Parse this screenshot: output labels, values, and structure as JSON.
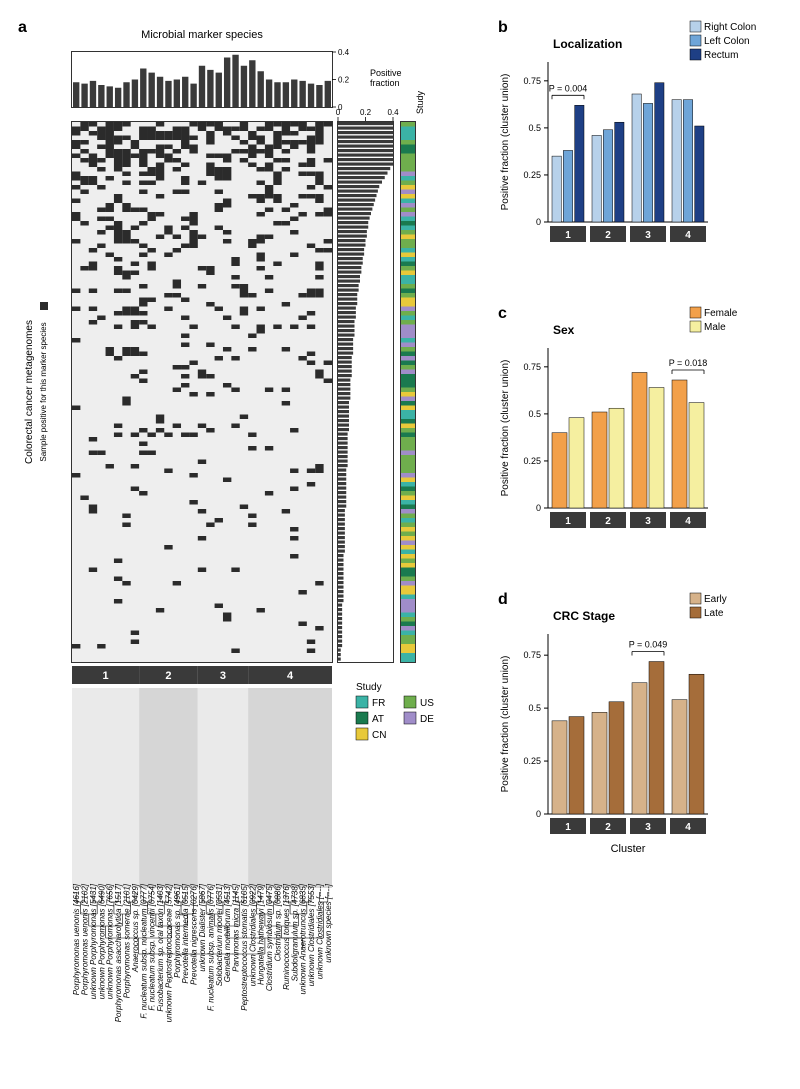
{
  "panelA": {
    "label": "a",
    "top_title": "Microbial marker species",
    "y_axis_label": "Colorectal cancer metagenomes",
    "legend_box_label": "Sample positive for this marker species",
    "top_bar": {
      "ylabel": "Positive\nfraction",
      "ylim": [
        0,
        0.4
      ],
      "yticks": [
        0,
        0.2,
        0.4
      ],
      "bar_color": "#3a3a3a",
      "values": [
        0.18,
        0.17,
        0.19,
        0.16,
        0.15,
        0.14,
        0.18,
        0.2,
        0.28,
        0.25,
        0.22,
        0.19,
        0.2,
        0.22,
        0.17,
        0.3,
        0.27,
        0.25,
        0.36,
        0.38,
        0.3,
        0.34,
        0.26,
        0.2,
        0.18,
        0.18,
        0.2,
        0.19,
        0.17,
        0.16,
        0.19
      ]
    },
    "right_bar": {
      "xlim": [
        0,
        0.4
      ],
      "xticks": [
        0,
        0.2,
        0.4
      ]
    },
    "study_label": "Study",
    "study_legend": {
      "title": "Study",
      "items": [
        {
          "code": "FR",
          "color": "#3bb3a6"
        },
        {
          "code": "AT",
          "color": "#1a7a4f"
        },
        {
          "code": "CN",
          "color": "#e8c93a"
        },
        {
          "code": "US",
          "color": "#6fae4d"
        },
        {
          "code": "DE",
          "color": "#a08dc9"
        }
      ]
    },
    "heatmap": {
      "fg": "#2b2b2b",
      "bg": "#eeeeee",
      "n_cols": 31,
      "n_rows": 120,
      "density_profile": [
        0.7,
        0.66,
        0.63,
        0.6,
        0.55,
        0.52,
        0.49,
        0.46,
        0.43,
        0.4,
        0.38,
        0.36,
        0.34,
        0.32,
        0.3,
        0.29,
        0.28,
        0.27,
        0.26,
        0.25,
        0.24,
        0.23,
        0.22,
        0.22,
        0.21,
        0.21,
        0.2,
        0.2,
        0.19,
        0.19,
        0.18,
        0.18,
        0.17,
        0.17,
        0.16,
        0.16,
        0.15,
        0.15,
        0.14,
        0.14,
        0.14,
        0.13,
        0.13,
        0.13,
        0.12,
        0.12,
        0.12,
        0.12,
        0.11,
        0.11,
        0.11,
        0.11,
        0.1,
        0.1,
        0.1,
        0.1,
        0.1,
        0.09,
        0.09,
        0.09,
        0.09,
        0.09,
        0.08,
        0.08,
        0.08,
        0.08,
        0.08,
        0.08,
        0.08,
        0.07,
        0.07,
        0.07,
        0.07,
        0.07,
        0.07,
        0.07,
        0.07,
        0.06,
        0.06,
        0.06,
        0.06,
        0.06,
        0.06,
        0.06,
        0.06,
        0.06,
        0.05,
        0.05,
        0.05,
        0.05,
        0.05,
        0.05,
        0.05,
        0.05,
        0.05,
        0.05,
        0.04,
        0.04,
        0.04,
        0.04,
        0.04,
        0.04,
        0.04,
        0.04,
        0.04,
        0.04,
        0.04,
        0.03,
        0.03,
        0.03,
        0.03,
        0.03,
        0.03,
        0.03,
        0.03,
        0.03,
        0.03,
        0.02,
        0.02,
        0.02
      ]
    },
    "clusters": [
      {
        "id": "1",
        "span": [
          0,
          7
        ],
        "bg": "#eaeaea"
      },
      {
        "id": "2",
        "span": [
          8,
          14
        ],
        "bg": "#d6d6d6"
      },
      {
        "id": "3",
        "span": [
          15,
          20
        ],
        "bg": "#eaeaea"
      },
      {
        "id": "4",
        "span": [
          21,
          30
        ],
        "bg": "#d6d6d6"
      }
    ],
    "species": [
      "Porphyromonas uenonis [4616]",
      "Porphyromonas uenonis [2102]",
      "unknown Porphyromonas [5431]",
      "unknown Porphyromonas [6490]",
      "unknown Porphyromonas [7656]",
      "Porphyromonas asaccharolytica [1517]",
      "Porphyromonas somerae [2101]",
      "Anaerococcus sp. [0429]",
      "F. nucleatum subsp. nucleatum [0777]",
      "F. nucleatum subsp. vincentii [0754]",
      "Fusobacterium sp. oral taxon [1403]",
      "unknown Peptostreptococaceae [5742]",
      "Porphyromonas sp. [4961]",
      "Prevotella intermedia [0515]",
      "Prevotella nigrescens [0276]",
      "unknown Dialister [5867]",
      "F. nucleatum subsp. animalis [0776]",
      "Solobacterium moorei [0531]",
      "Gemella morbillorum [4513]",
      "Parvimonas micra [1145]",
      "Peptostreptococcus stomatis [6105]",
      "unknown Clostridiales [0922]",
      "Hungatella hathewayi [1479]",
      "Clostridium symbiosum [0475]",
      "Clostridium sp. [0886]",
      "Ruminococcus torques [1376]",
      "Subdoligranulum sp. [4738]",
      "unknown Anaerotruncus [6835]",
      "unknown Clostridiales [7553]",
      "unknown Clostridiales [----]",
      "unknown species [----]"
    ]
  },
  "panelB": {
    "label": "b",
    "title": "Localization",
    "ylabel": "Positive fraction (cluster union)",
    "ylim": [
      0,
      0.85
    ],
    "yticks": [
      0,
      0.25,
      0.5,
      0.75
    ],
    "p_text": "P = 0.004",
    "p_group": 1,
    "categories": [
      "Right Colon",
      "Left Colon",
      "Rectum"
    ],
    "colors": [
      "#b7d1ea",
      "#6fa5d8",
      "#1e3f85"
    ],
    "groups": [
      "1",
      "2",
      "3",
      "4"
    ],
    "values": [
      [
        0.35,
        0.38,
        0.62
      ],
      [
        0.46,
        0.49,
        0.53
      ],
      [
        0.68,
        0.63,
        0.74
      ],
      [
        0.65,
        0.65,
        0.51
      ]
    ]
  },
  "panelC": {
    "label": "c",
    "title": "Sex",
    "ylabel": "Positive fraction (cluster union)",
    "ylim": [
      0,
      0.85
    ],
    "yticks": [
      0,
      0.25,
      0.5,
      0.75
    ],
    "p_text": "P = 0.018",
    "p_group": 4,
    "categories": [
      "Female",
      "Male"
    ],
    "colors": [
      "#f2a04a",
      "#f5efa0"
    ],
    "groups": [
      "1",
      "2",
      "3",
      "4"
    ],
    "values": [
      [
        0.4,
        0.48
      ],
      [
        0.51,
        0.53
      ],
      [
        0.72,
        0.64
      ],
      [
        0.68,
        0.56
      ]
    ]
  },
  "panelD": {
    "label": "d",
    "title": "CRC Stage",
    "ylabel": "Positive fraction (cluster union)",
    "xlabel": "Cluster",
    "ylim": [
      0,
      0.85
    ],
    "yticks": [
      0,
      0.25,
      0.5,
      0.75
    ],
    "p_text": "P = 0.049",
    "p_group": 3,
    "categories": [
      "Early",
      "Late"
    ],
    "colors": [
      "#d6b28a",
      "#a56d3a"
    ],
    "groups": [
      "1",
      "2",
      "3",
      "4"
    ],
    "values": [
      [
        0.44,
        0.46
      ],
      [
        0.48,
        0.53
      ],
      [
        0.62,
        0.72
      ],
      [
        0.54,
        0.66
      ]
    ]
  }
}
